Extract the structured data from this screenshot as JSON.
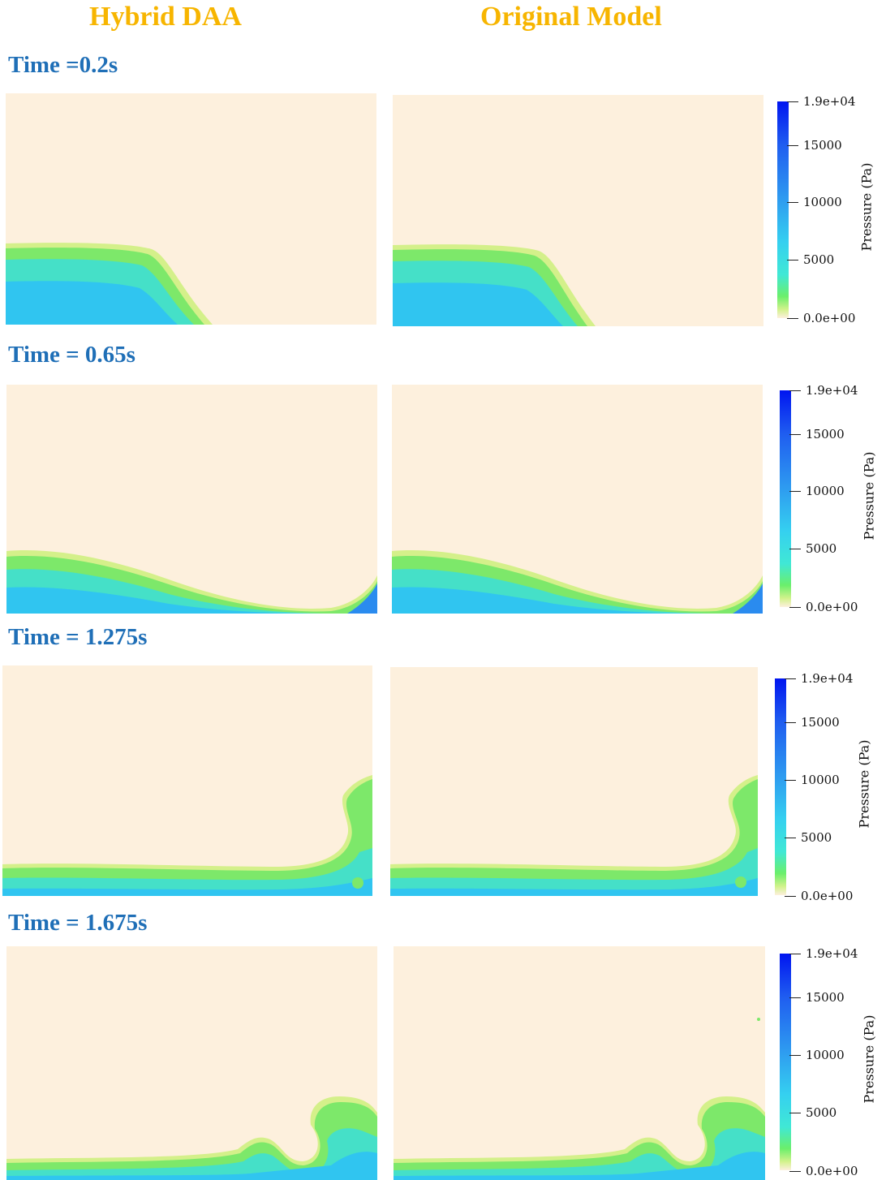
{
  "headers": {
    "left": "Hybrid DAA",
    "right": "Original Model"
  },
  "rows": [
    {
      "time": "Time =0.2s"
    },
    {
      "time": "Time = 0.65s"
    },
    {
      "time": "Time = 1.275s"
    },
    {
      "time": "Time = 1.675s"
    }
  ],
  "colorbar": {
    "title": "Pressure (Pa)",
    "ticks": [
      "1.9e+04",
      "15000",
      "10000",
      "5000",
      "0.0e+00"
    ],
    "tick_values": [
      19000,
      15000,
      10000,
      5000,
      0
    ],
    "range": [
      0,
      19000
    ]
  },
  "colors": {
    "header": "#F7B500",
    "time_label": "#1F6FB7",
    "background_field": "#FDF0DD"
  }
}
